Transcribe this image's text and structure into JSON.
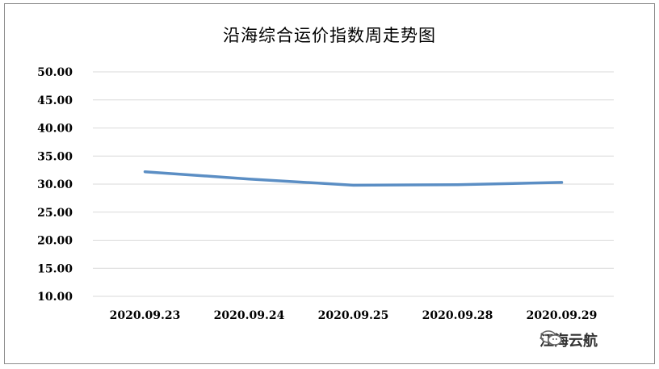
{
  "chart_data": {
    "type": "line",
    "title": "沿海综合运价指数周走势图",
    "categories": [
      "2020.09.23",
      "2020.09.24",
      "2020.09.25",
      "2020.09.28",
      "2020.09.29"
    ],
    "series": [
      {
        "values": [
          32.2,
          30.9,
          29.8,
          29.9,
          30.3
        ]
      }
    ],
    "ylim": [
      10,
      50
    ],
    "yticks": [
      "10.00",
      "15.00",
      "20.00",
      "25.00",
      "30.00",
      "35.00",
      "40.00",
      "45.00",
      "50.00"
    ],
    "grid": true,
    "line_color": "#5b8ec4",
    "grid_color": "#d9d9d9"
  },
  "watermark": {
    "icon": "wechat-icon",
    "text": "江海云航"
  }
}
